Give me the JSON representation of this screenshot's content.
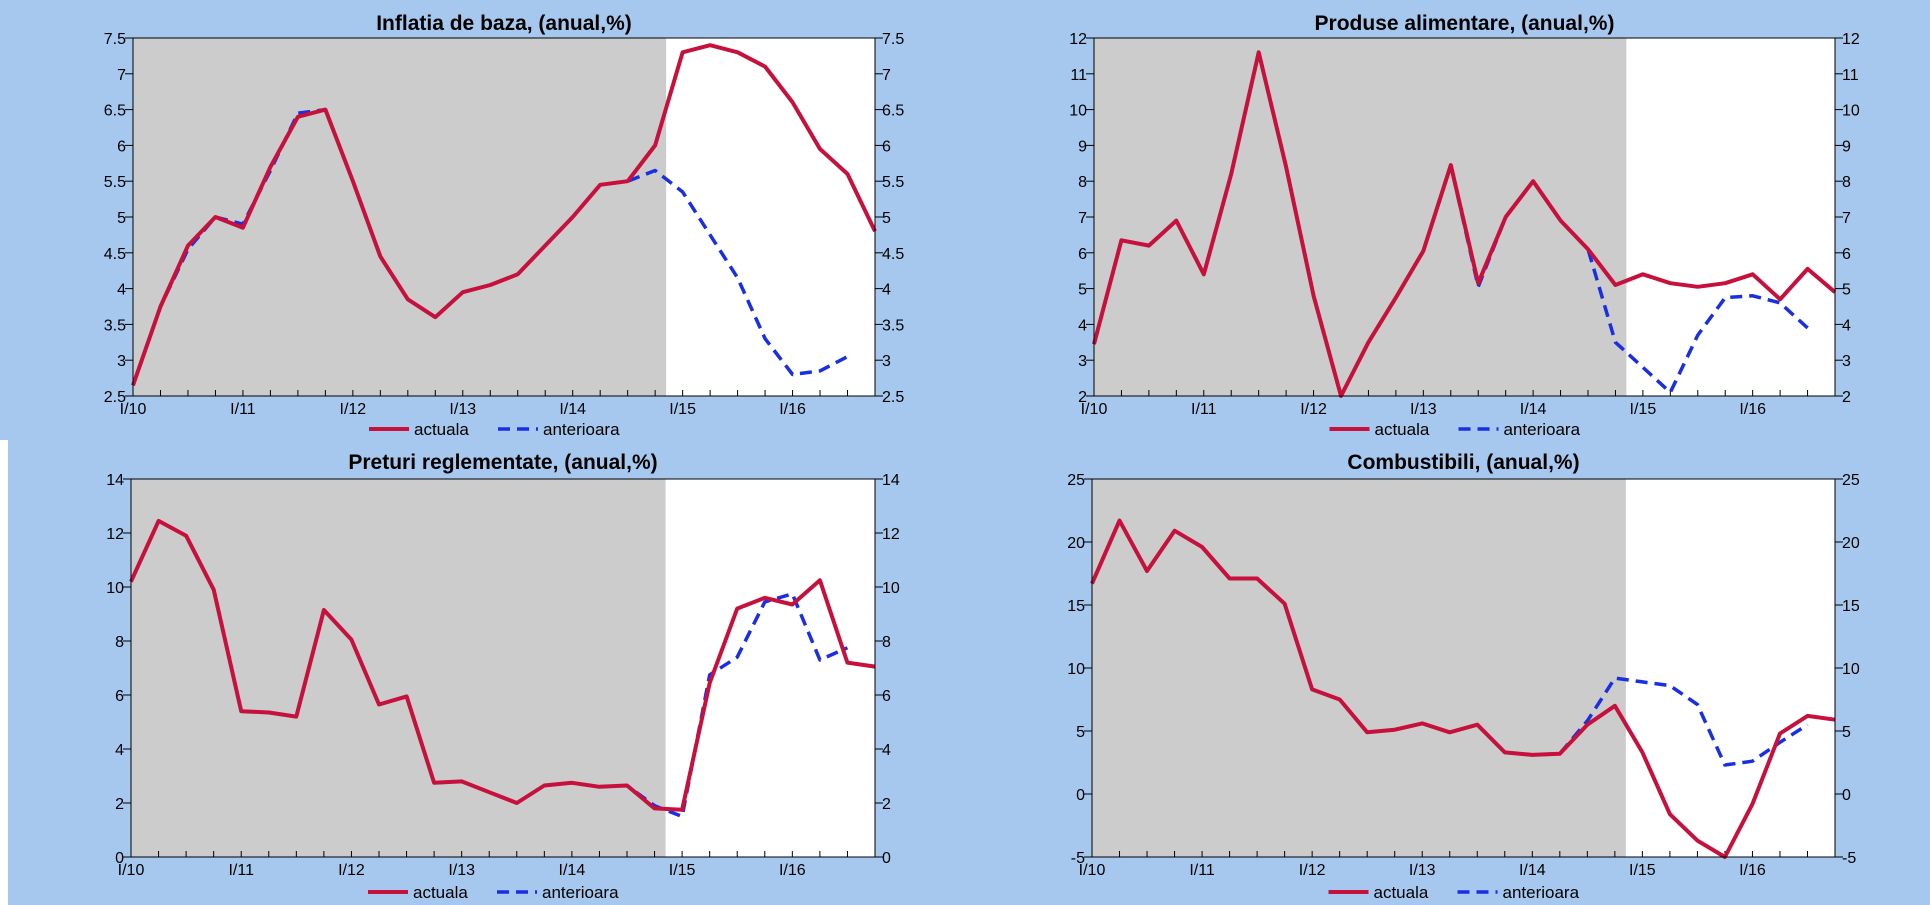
{
  "colors": {
    "background": "#a6c8ee",
    "history_shade": "#cccccc",
    "plot_area": "#ffffff",
    "actual": "#c8103c",
    "previous": "#1a2ee6"
  },
  "legend": {
    "actual": "actuala",
    "previous": "anterioara"
  },
  "chart_data": [
    {
      "type": "line",
      "title": "Inflatia de baza, (anual,%)",
      "x_tick_labels": [
        "I/10",
        "I/11",
        "I/12",
        "I/13",
        "I/14",
        "I/15",
        "I/16"
      ],
      "x_quarter_index_range": [
        0,
        27
      ],
      "shaded_through_quarter_index": 19.4,
      "ylim": [
        2.5,
        7.5
      ],
      "y_ticks": [
        2.5,
        3,
        3.5,
        4,
        4.5,
        5,
        5.5,
        6,
        6.5,
        7,
        7.5
      ],
      "y_tick_labels": [
        "2.5",
        "3",
        "3.5",
        "4",
        "4.5",
        "5",
        "5.5",
        "6",
        "6.5",
        "7",
        "7.5"
      ],
      "grid": false,
      "legend_position": "bottom-center",
      "series": [
        {
          "key": "actual",
          "name": "actuala",
          "style": "solid",
          "x": [
            0,
            1,
            2,
            3,
            4,
            5,
            6,
            7,
            8,
            9,
            10,
            11,
            12,
            13,
            14,
            15,
            16,
            17,
            18,
            19,
            20,
            21,
            22,
            23,
            24,
            25,
            26,
            27
          ],
          "values": [
            2.65,
            3.75,
            4.6,
            5.0,
            4.85,
            5.7,
            6.4,
            6.5,
            5.5,
            4.45,
            3.85,
            3.6,
            3.95,
            4.05,
            4.2,
            4.6,
            5.0,
            5.45,
            5.5,
            6.0,
            7.3,
            7.4,
            7.3,
            7.1,
            6.6,
            5.95,
            5.6,
            4.8
          ]
        },
        {
          "key": "previous",
          "name": "anterioara",
          "style": "dashed",
          "x": [
            0,
            1,
            2,
            3,
            4,
            5,
            6,
            7,
            8,
            9,
            10,
            11,
            12,
            13,
            14,
            15,
            16,
            17,
            18,
            19,
            20,
            21,
            22,
            23,
            24,
            25,
            26
          ],
          "values": [
            2.65,
            3.75,
            4.55,
            5.0,
            4.9,
            5.65,
            6.45,
            6.5,
            5.5,
            4.45,
            3.85,
            3.6,
            3.95,
            4.05,
            4.2,
            4.6,
            5.0,
            5.45,
            5.5,
            5.65,
            5.35,
            4.75,
            4.15,
            3.3,
            2.8,
            2.85,
            3.05
          ]
        }
      ]
    },
    {
      "type": "line",
      "title": "Produse alimentare, (anual,%)",
      "x_tick_labels": [
        "I/10",
        "I/11",
        "I/12",
        "I/13",
        "I/14",
        "I/15",
        "I/16"
      ],
      "x_quarter_index_range": [
        0,
        27
      ],
      "shaded_through_quarter_index": 19.4,
      "ylim": [
        2,
        12
      ],
      "y_ticks": [
        2,
        3,
        4,
        5,
        6,
        7,
        8,
        9,
        10,
        11,
        12
      ],
      "y_tick_labels": [
        "2",
        "3",
        "4",
        "5",
        "6",
        "7",
        "8",
        "9",
        "10",
        "11",
        "12"
      ],
      "grid": false,
      "legend_position": "bottom-center",
      "series": [
        {
          "key": "actual",
          "name": "actuala",
          "style": "solid",
          "x": [
            0,
            1,
            2,
            3,
            4,
            5,
            6,
            7,
            8,
            9,
            10,
            11,
            12,
            13,
            14,
            15,
            16,
            17,
            18,
            19,
            20,
            21,
            22,
            23,
            24,
            25,
            26,
            27
          ],
          "values": [
            3.45,
            6.35,
            6.2,
            6.9,
            5.4,
            8.2,
            11.6,
            8.4,
            4.8,
            2.0,
            3.5,
            4.75,
            6.05,
            8.45,
            5.15,
            7.0,
            8.0,
            6.9,
            6.1,
            5.1,
            5.4,
            5.15,
            5.05,
            5.15,
            5.4,
            4.7,
            5.55,
            4.9
          ]
        },
        {
          "key": "previous",
          "name": "anterioara",
          "style": "dashed",
          "x": [
            0,
            1,
            2,
            3,
            4,
            5,
            6,
            7,
            8,
            9,
            10,
            11,
            12,
            13,
            14,
            15,
            16,
            17,
            18,
            19,
            20,
            21,
            22,
            23,
            24,
            25,
            26
          ],
          "values": [
            3.45,
            6.35,
            6.2,
            6.9,
            5.4,
            8.2,
            11.6,
            8.4,
            4.8,
            2.0,
            3.5,
            4.75,
            6.05,
            8.45,
            5.05,
            7.0,
            8.0,
            6.9,
            6.1,
            3.5,
            2.8,
            2.1,
            3.7,
            4.75,
            4.8,
            4.6,
            3.9
          ]
        }
      ]
    },
    {
      "type": "line",
      "title": "Preturi reglementate, (anual,%)",
      "x_tick_labels": [
        "I/10",
        "I/11",
        "I/12",
        "I/13",
        "I/14",
        "I/15",
        "I/16"
      ],
      "x_quarter_index_range": [
        0,
        27
      ],
      "shaded_through_quarter_index": 19.4,
      "ylim": [
        0,
        14
      ],
      "y_ticks": [
        0,
        2,
        4,
        6,
        8,
        10,
        12,
        14
      ],
      "y_tick_labels": [
        "0",
        "2",
        "4",
        "6",
        "8",
        "10",
        "12",
        "14"
      ],
      "grid": false,
      "legend_position": "bottom-center",
      "series": [
        {
          "key": "actual",
          "name": "actuala",
          "style": "solid",
          "x": [
            0,
            1,
            2,
            3,
            4,
            5,
            6,
            7,
            8,
            9,
            10,
            11,
            12,
            13,
            14,
            15,
            16,
            17,
            18,
            19,
            20,
            21,
            22,
            23,
            24,
            25,
            26,
            27
          ],
          "values": [
            10.2,
            12.45,
            11.9,
            9.9,
            5.4,
            5.35,
            5.2,
            9.15,
            8.05,
            5.65,
            5.95,
            2.75,
            2.8,
            2.4,
            2.0,
            2.65,
            2.75,
            2.6,
            2.65,
            1.8,
            1.75,
            6.45,
            9.2,
            9.6,
            9.35,
            10.25,
            7.2,
            7.05
          ]
        },
        {
          "key": "previous",
          "name": "anterioara",
          "style": "dashed",
          "x": [
            0,
            1,
            2,
            3,
            4,
            5,
            6,
            7,
            8,
            9,
            10,
            11,
            12,
            13,
            14,
            15,
            16,
            17,
            18,
            19,
            20,
            21,
            22,
            23,
            24,
            25,
            26
          ],
          "values": [
            10.2,
            12.45,
            11.9,
            9.9,
            5.4,
            5.35,
            5.2,
            9.15,
            8.05,
            5.65,
            5.95,
            2.75,
            2.8,
            2.4,
            2.0,
            2.65,
            2.75,
            2.6,
            2.65,
            1.9,
            1.5,
            6.75,
            7.4,
            9.45,
            9.75,
            7.3,
            7.75
          ]
        }
      ]
    },
    {
      "type": "line",
      "title": "Combustibili, (anual,%)",
      "x_tick_labels": [
        "I/10",
        "I/11",
        "I/12",
        "I/13",
        "I/14",
        "I/15",
        "I/16"
      ],
      "x_quarter_index_range": [
        0,
        27
      ],
      "shaded_through_quarter_index": 19.4,
      "ylim": [
        -5,
        25
      ],
      "y_ticks": [
        -5,
        0,
        5,
        10,
        15,
        20,
        25
      ],
      "y_tick_labels": [
        "-5",
        "0",
        "5",
        "10",
        "15",
        "20",
        "25"
      ],
      "grid": false,
      "legend_position": "bottom-center",
      "series": [
        {
          "key": "actual",
          "name": "actuala",
          "style": "solid",
          "x": [
            0,
            1,
            2,
            3,
            4,
            5,
            6,
            7,
            8,
            9,
            10,
            11,
            12,
            13,
            14,
            15,
            16,
            17,
            18,
            19,
            20,
            21,
            22,
            23,
            24,
            25,
            26,
            27
          ],
          "values": [
            16.7,
            21.7,
            17.7,
            20.9,
            19.6,
            17.1,
            17.1,
            15.1,
            8.3,
            7.5,
            4.9,
            5.1,
            5.6,
            4.9,
            5.5,
            3.3,
            3.1,
            3.2,
            5.5,
            7.0,
            3.3,
            -1.6,
            -3.7,
            -5.0,
            -0.8,
            4.8,
            6.2,
            5.9
          ]
        },
        {
          "key": "previous",
          "name": "anterioara",
          "style": "dashed",
          "x": [
            0,
            1,
            2,
            3,
            4,
            5,
            6,
            7,
            8,
            9,
            10,
            11,
            12,
            13,
            14,
            15,
            16,
            17,
            18,
            19,
            20,
            21,
            22,
            23,
            24,
            25,
            26
          ],
          "values": [
            16.7,
            21.7,
            17.7,
            20.9,
            19.6,
            17.1,
            17.1,
            15.1,
            8.3,
            7.5,
            4.9,
            5.1,
            5.6,
            4.9,
            5.5,
            3.3,
            3.1,
            3.2,
            5.8,
            9.2,
            8.9,
            8.6,
            7.1,
            2.3,
            2.6,
            4.1,
            5.5
          ]
        }
      ]
    }
  ]
}
